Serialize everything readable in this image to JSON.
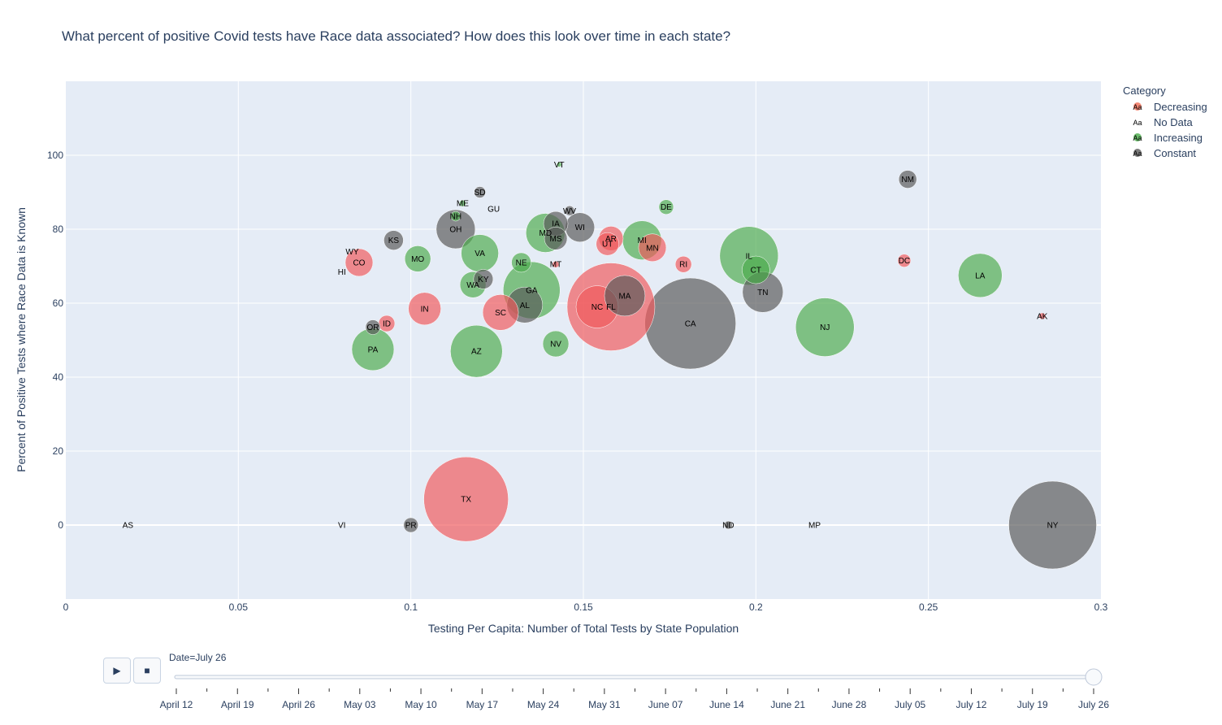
{
  "chart_data": {
    "type": "scatter",
    "title": "What percent of positive Covid tests have Race data associated? How does this look over time in each state?",
    "xlabel": "Testing Per Capita: Number of Total Tests by State Population",
    "ylabel": "Percent of Positive Tests where Race Data is Known",
    "xlim": [
      0,
      0.3
    ],
    "ylim": [
      -20,
      120
    ],
    "xticks": [
      "0",
      "0.05",
      "0.1",
      "0.15",
      "0.2",
      "0.25",
      "0.3"
    ],
    "yticks": [
      "0",
      "20",
      "40",
      "60",
      "80",
      "100"
    ],
    "grid": true,
    "legend": {
      "title": "Category",
      "placement": "top-right",
      "entries": [
        {
          "name": "Decreasing",
          "color": "#ef553b"
        },
        {
          "name": "No Data",
          "color": "#999999"
        },
        {
          "name": "Increasing",
          "color": "#2ca02c"
        },
        {
          "name": "Constant",
          "color": "#444444"
        }
      ]
    },
    "colors": {
      "Decreasing": "#f0595c",
      "Increasing": "#4cab4c",
      "Constant": "#595959",
      "No Data": "#aaaaaa"
    },
    "points": [
      {
        "label": "TX",
        "x": 0.116,
        "y": 7,
        "r": 52,
        "cat": "Decreasing"
      },
      {
        "label": "NY",
        "x": 0.286,
        "y": 0,
        "r": 54,
        "cat": "Constant"
      },
      {
        "label": "CA",
        "x": 0.181,
        "y": 54.5,
        "r": 56,
        "cat": "Constant"
      },
      {
        "label": "FL",
        "x": 0.158,
        "y": 59,
        "r": 54,
        "cat": "Decreasing"
      },
      {
        "label": "NC",
        "x": 0.154,
        "y": 59,
        "r": 26,
        "cat": "Decreasing"
      },
      {
        "label": "MA",
        "x": 0.162,
        "y": 62,
        "r": 25,
        "cat": "Constant"
      },
      {
        "label": "IL",
        "x": 0.198,
        "y": 72.8,
        "r": 36,
        "cat": "Increasing"
      },
      {
        "label": "CT",
        "x": 0.2,
        "y": 69,
        "r": 17,
        "cat": "Increasing"
      },
      {
        "label": "TN",
        "x": 0.202,
        "y": 63,
        "r": 25,
        "cat": "Constant"
      },
      {
        "label": "NJ",
        "x": 0.22,
        "y": 53.5,
        "r": 36,
        "cat": "Increasing"
      },
      {
        "label": "LA",
        "x": 0.265,
        "y": 67.5,
        "r": 27,
        "cat": "Increasing"
      },
      {
        "label": "AZ",
        "x": 0.119,
        "y": 47,
        "r": 32,
        "cat": "Increasing"
      },
      {
        "label": "GA",
        "x": 0.135,
        "y": 63.5,
        "r": 35,
        "cat": "Increasing"
      },
      {
        "label": "AL",
        "x": 0.133,
        "y": 59.5,
        "r": 22,
        "cat": "Constant"
      },
      {
        "label": "SC",
        "x": 0.126,
        "y": 57.5,
        "r": 22,
        "cat": "Decreasing"
      },
      {
        "label": "PA",
        "x": 0.089,
        "y": 47.5,
        "r": 26,
        "cat": "Increasing"
      },
      {
        "label": "IN",
        "x": 0.104,
        "y": 58.5,
        "r": 20,
        "cat": "Decreasing"
      },
      {
        "label": "NV",
        "x": 0.142,
        "y": 49,
        "r": 16,
        "cat": "Increasing"
      },
      {
        "label": "MO",
        "x": 0.102,
        "y": 72,
        "r": 16,
        "cat": "Increasing"
      },
      {
        "label": "CO",
        "x": 0.085,
        "y": 71,
        "r": 17,
        "cat": "Decreasing"
      },
      {
        "label": "VA",
        "x": 0.12,
        "y": 73.5,
        "r": 23,
        "cat": "Increasing"
      },
      {
        "label": "WA",
        "x": 0.118,
        "y": 65,
        "r": 16,
        "cat": "Increasing"
      },
      {
        "label": "KY",
        "x": 0.121,
        "y": 66.5,
        "r": 12,
        "cat": "Constant"
      },
      {
        "label": "NE",
        "x": 0.132,
        "y": 71,
        "r": 12,
        "cat": "Increasing"
      },
      {
        "label": "OH",
        "x": 0.113,
        "y": 80,
        "r": 24,
        "cat": "Constant"
      },
      {
        "label": "KS",
        "x": 0.095,
        "y": 77,
        "r": 12,
        "cat": "Constant"
      },
      {
        "label": "MD",
        "x": 0.139,
        "y": 79,
        "r": 24,
        "cat": "Increasing"
      },
      {
        "label": "IA",
        "x": 0.142,
        "y": 81.5,
        "r": 15,
        "cat": "Constant"
      },
      {
        "label": "MS",
        "x": 0.142,
        "y": 77.5,
        "r": 14,
        "cat": "Constant"
      },
      {
        "label": "WI",
        "x": 0.149,
        "y": 80.5,
        "r": 18,
        "cat": "Constant"
      },
      {
        "label": "AR",
        "x": 0.158,
        "y": 77.5,
        "r": 15,
        "cat": "Decreasing"
      },
      {
        "label": "UT",
        "x": 0.157,
        "y": 76,
        "r": 14,
        "cat": "Decreasing"
      },
      {
        "label": "MI",
        "x": 0.167,
        "y": 77,
        "r": 24,
        "cat": "Increasing"
      },
      {
        "label": "MN",
        "x": 0.17,
        "y": 75,
        "r": 17,
        "cat": "Decreasing"
      },
      {
        "label": "DE",
        "x": 0.174,
        "y": 86,
        "r": 9,
        "cat": "Increasing"
      },
      {
        "label": "RI",
        "x": 0.179,
        "y": 70.5,
        "r": 10,
        "cat": "Decreasing"
      },
      {
        "label": "OR",
        "x": 0.089,
        "y": 53.5,
        "r": 9,
        "cat": "Constant"
      },
      {
        "label": "ID",
        "x": 0.093,
        "y": 54.5,
        "r": 10,
        "cat": "Decreasing"
      },
      {
        "label": "NH",
        "x": 0.113,
        "y": 83.5,
        "r": 6,
        "cat": "Increasing"
      },
      {
        "label": "SD",
        "x": 0.12,
        "y": 90,
        "r": 7,
        "cat": "Constant"
      },
      {
        "label": "ME",
        "x": 0.115,
        "y": 87,
        "r": 4,
        "cat": "Increasing"
      },
      {
        "label": "WV",
        "x": 0.146,
        "y": 85,
        "r": 6,
        "cat": "Constant"
      },
      {
        "label": "MT",
        "x": 0.142,
        "y": 70.5,
        "r": 4,
        "cat": "Decreasing"
      },
      {
        "label": "VT",
        "x": 0.143,
        "y": 97.5,
        "r": 3,
        "cat": "Increasing"
      },
      {
        "label": "DC",
        "x": 0.243,
        "y": 71.5,
        "r": 8,
        "cat": "Decreasing"
      },
      {
        "label": "NM",
        "x": 0.244,
        "y": 93.5,
        "r": 11,
        "cat": "Constant"
      },
      {
        "label": "AK",
        "x": 0.283,
        "y": 56.5,
        "r": 4,
        "cat": "Decreasing"
      },
      {
        "label": "PR",
        "x": 0.1,
        "y": 0,
        "r": 9,
        "cat": "Constant"
      },
      {
        "label": "ND",
        "x": 0.192,
        "y": 0,
        "r": 5,
        "cat": "Constant"
      },
      {
        "label": "WY",
        "x": 0.083,
        "y": 74,
        "r": 0,
        "cat": "No Data"
      },
      {
        "label": "HI",
        "x": 0.08,
        "y": 68.5,
        "r": 0,
        "cat": "No Data"
      },
      {
        "label": "GU",
        "x": 0.124,
        "y": 85.5,
        "r": 0,
        "cat": "No Data"
      },
      {
        "label": "AS",
        "x": 0.018,
        "y": 0,
        "r": 0,
        "cat": "No Data"
      },
      {
        "label": "VI",
        "x": 0.08,
        "y": 0,
        "r": 0,
        "cat": "No Data"
      },
      {
        "label": "MP",
        "x": 0.217,
        "y": 0,
        "r": 0,
        "cat": "No Data"
      }
    ]
  },
  "slider": {
    "current_label": "Date=July 26",
    "play_icon": "▶",
    "stop_icon": "■",
    "dates": [
      "April 12",
      "April 19",
      "April 26",
      "May 03",
      "May 10",
      "May 17",
      "May 24",
      "May 31",
      "June 07",
      "June 14",
      "June 21",
      "June 28",
      "July 05",
      "July 12",
      "July 19",
      "July 26"
    ]
  }
}
